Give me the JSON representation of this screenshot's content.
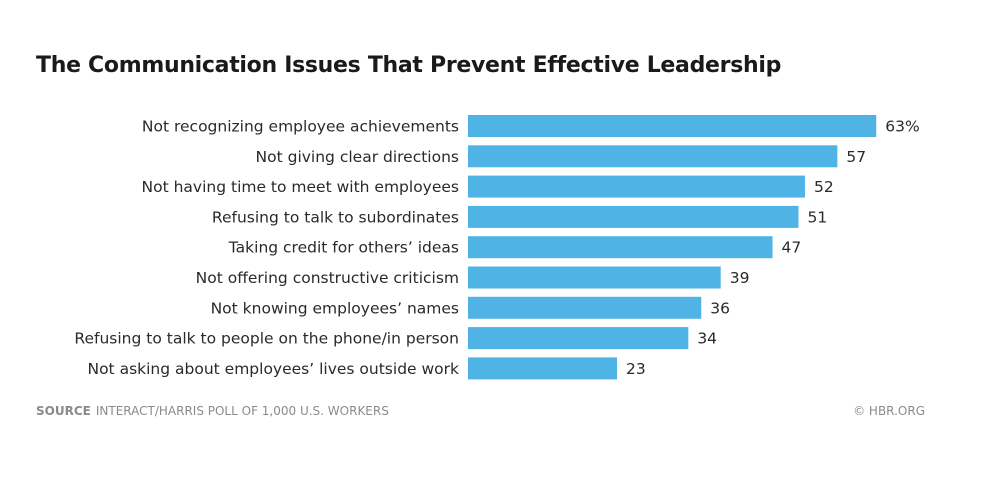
{
  "title": "The Communication Issues That Prevent Effective Leadership",
  "source_label": "SOURCE",
  "source_text": "INTERACT/HARRIS POLL OF 1,000 U.S. WORKERS",
  "credit": "© HBR.ORG",
  "bar_color": "#4fb3e6",
  "chart_data": {
    "type": "bar",
    "orientation": "horizontal",
    "categories": [
      "Not recognizing employee achievements",
      "Not giving clear directions",
      "Not having time to meet with employees",
      "Refusing to talk to subordinates",
      "Taking credit for others’ ideas",
      "Not offering constructive criticism",
      "Not knowing employees’ names",
      "Refusing to talk to people on the phone/in person",
      "Not asking about employees’ lives outside work"
    ],
    "values": [
      63,
      57,
      52,
      51,
      47,
      39,
      36,
      34,
      23
    ],
    "value_labels": [
      "63%",
      "57",
      "52",
      "51",
      "47",
      "39",
      "36",
      "34",
      "23"
    ],
    "unit": "%",
    "grid": false
  }
}
